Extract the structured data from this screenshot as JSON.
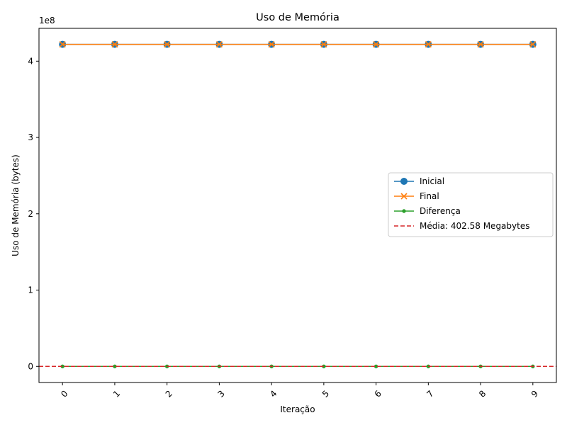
{
  "chart_data": {
    "type": "line",
    "title": "Uso de Memória",
    "xlabel": "Iteração",
    "ylabel": "Uso de Memória (bytes)",
    "y_offset_label": "1e8",
    "x": [
      0,
      1,
      2,
      3,
      4,
      5,
      6,
      7,
      8,
      9
    ],
    "x_tick_labels": [
      "0",
      "1",
      "2",
      "3",
      "4",
      "5",
      "6",
      "7",
      "8",
      "9"
    ],
    "x_tick_rotation_deg": 45,
    "y_ticks": [
      0,
      100000000,
      200000000,
      300000000,
      400000000
    ],
    "y_tick_labels": [
      "0",
      "1",
      "2",
      "3",
      "4"
    ],
    "xlim": [
      -0.45,
      9.45
    ],
    "ylim": [
      -21100000,
      443000000
    ],
    "series": [
      {
        "name": "Inicial",
        "values": [
          422000000,
          422000000,
          422000000,
          422000000,
          422000000,
          422000000,
          422000000,
          422000000,
          422000000,
          422000000
        ],
        "color": "#1f77b4",
        "marker": "circle"
      },
      {
        "name": "Final",
        "values": [
          422000000,
          422000000,
          422000000,
          422000000,
          422000000,
          422000000,
          422000000,
          422000000,
          422000000,
          422000000
        ],
        "color": "#ff7f0e",
        "marker": "x"
      },
      {
        "name": "Diferença",
        "values": [
          0,
          0,
          0,
          0,
          0,
          0,
          0,
          0,
          0,
          0
        ],
        "color": "#2ca02c",
        "marker": "point"
      }
    ],
    "hline": {
      "name": "Média: 402.58 Megabytes",
      "value": 402.58,
      "color": "#d62728",
      "style": "dashed"
    },
    "legend_position": "center-right",
    "grid": false
  }
}
